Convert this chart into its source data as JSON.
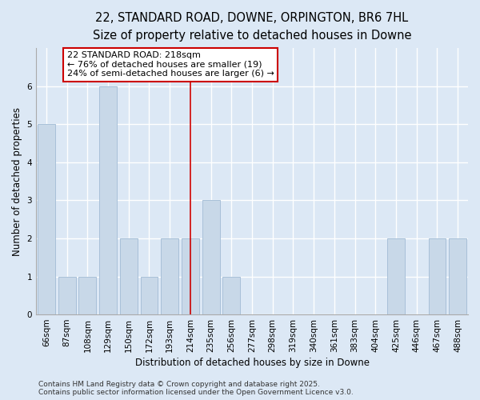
{
  "title_line1": "22, STANDARD ROAD, DOWNE, ORPINGTON, BR6 7HL",
  "title_line2": "Size of property relative to detached houses in Downe",
  "xlabel": "Distribution of detached houses by size in Downe",
  "ylabel": "Number of detached properties",
  "categories": [
    "66sqm",
    "87sqm",
    "108sqm",
    "129sqm",
    "150sqm",
    "172sqm",
    "193sqm",
    "214sqm",
    "235sqm",
    "256sqm",
    "277sqm",
    "298sqm",
    "319sqm",
    "340sqm",
    "361sqm",
    "383sqm",
    "404sqm",
    "425sqm",
    "446sqm",
    "467sqm",
    "488sqm"
  ],
  "values": [
    5,
    1,
    1,
    6,
    2,
    1,
    2,
    2,
    3,
    1,
    0,
    0,
    0,
    0,
    0,
    0,
    0,
    2,
    0,
    2,
    2
  ],
  "bar_color": "#c8d8e8",
  "bar_edgecolor": "#a8c0d8",
  "highlight_index": 7,
  "vline_color": "#cc0000",
  "annotation_text": "22 STANDARD ROAD: 218sqm\n← 76% of detached houses are smaller (19)\n24% of semi-detached houses are larger (6) →",
  "annotation_box_color": "#ffffff",
  "annotation_box_edgecolor": "#cc0000",
  "ylim": [
    0,
    7
  ],
  "yticks": [
    0,
    1,
    2,
    3,
    4,
    5,
    6
  ],
  "background_color": "#dce8f5",
  "plot_background": "#dce8f5",
  "grid_color": "#ffffff",
  "title_fontsize": 10.5,
  "subtitle_fontsize": 9.5,
  "axis_label_fontsize": 8.5,
  "tick_fontsize": 7.5,
  "annotation_fontsize": 8,
  "footer_fontsize": 6.5,
  "footer_line1": "Contains HM Land Registry data © Crown copyright and database right 2025.",
  "footer_line2": "Contains public sector information licensed under the Open Government Licence v3.0."
}
